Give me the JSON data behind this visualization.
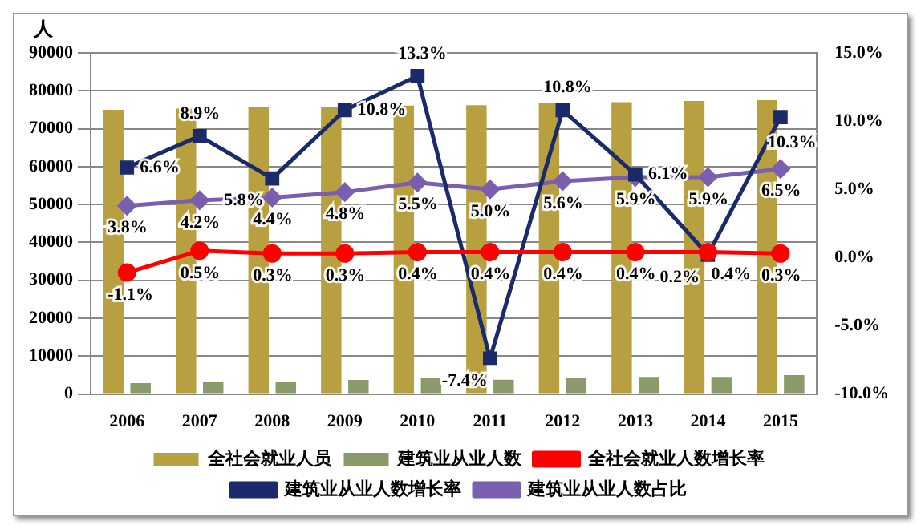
{
  "chart_data": {
    "type": "bar",
    "ylabel": "人",
    "categories": [
      "2006",
      "2007",
      "2008",
      "2009",
      "2010",
      "2011",
      "2012",
      "2013",
      "2014",
      "2015"
    ],
    "series": [
      {
        "name": "全社会就业人员",
        "color": "#b8a040",
        "values": [
          75000,
          75300,
          75600,
          75800,
          76100,
          76200,
          76700,
          77000,
          77300,
          77500
        ]
      },
      {
        "name": "建筑业从业人数",
        "color": "#8a9a6a",
        "values": [
          2900,
          3200,
          3300,
          3700,
          4200,
          3800,
          4300,
          4500,
          4500,
          5000
        ]
      },
      {
        "name": "全社会就业人数增长率",
        "type": "line",
        "axis": "y2",
        "color": "#ff0000",
        "marker": "circle",
        "values": [
          -1.1,
          0.5,
          0.3,
          0.3,
          0.4,
          0.4,
          0.4,
          0.4,
          0.4,
          0.3
        ],
        "value_labels": [
          "-1.1%",
          "0.5%",
          "0.3%",
          "0.3%",
          "0.4%",
          "0.4%",
          "0.4%",
          "0.4%",
          "0.4%",
          "0.3%"
        ]
      },
      {
        "name": "建筑业从业人数增长率",
        "type": "line",
        "axis": "y2",
        "color": "#1a2a6a",
        "marker": "square",
        "values": [
          6.6,
          8.9,
          5.8,
          10.8,
          13.3,
          -7.4,
          10.8,
          6.1,
          0.2,
          10.3
        ],
        "value_labels": [
          "6.6%",
          "8.9%",
          "5.8%",
          "10.8%",
          "13.3%",
          "-7.4%",
          "10.8%",
          "6.1%",
          "0.2%",
          "10.3%"
        ]
      },
      {
        "name": "建筑业从业人数占比",
        "type": "line",
        "axis": "y2",
        "color": "#7a5fb0",
        "marker": "diamond",
        "values": [
          3.8,
          4.2,
          4.4,
          4.8,
          5.5,
          5.0,
          5.6,
          5.9,
          5.9,
          6.5
        ],
        "value_labels": [
          "3.8%",
          "4.2%",
          "4.4%",
          "4.8%",
          "5.5%",
          "5.0%",
          "5.6%",
          "5.9%",
          "5.9%",
          "6.5%"
        ]
      }
    ],
    "ylim": [
      0,
      90000
    ],
    "yticks": [
      0,
      10000,
      20000,
      30000,
      40000,
      50000,
      60000,
      70000,
      80000,
      90000
    ],
    "y2lim": [
      -10,
      15
    ],
    "y2ticks": [
      {
        "value": -10,
        "label": "-10.0%"
      },
      {
        "value": -5,
        "label": "-5.0%"
      },
      {
        "value": 0,
        "label": "0.0%"
      },
      {
        "value": 5,
        "label": "5.0%"
      },
      {
        "value": 10,
        "label": "10.0%"
      },
      {
        "value": 15,
        "label": "15.0%"
      }
    ],
    "grid": "y",
    "legend": "bottom"
  }
}
